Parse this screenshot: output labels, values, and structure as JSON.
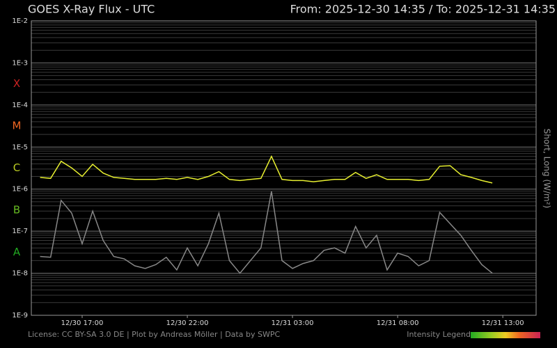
{
  "chart_data": {
    "type": "line",
    "title": "GOES X-Ray Flux - UTC",
    "subtitle": "From: 2025-12-30 14:35  /  To: 2025-12-31 14:35",
    "y_label": "Short, Long (W/m²)",
    "footer": "License: CC BY-SA 3.0 DE | Plot by Andreas Möller | Data by SWPC",
    "legend_label": "Intensity Legend",
    "log_scale": true,
    "grid": true,
    "minor_grid": true,
    "xlim": [
      "2025-12-30T14:35",
      "2025-12-31T14:35"
    ],
    "xticks": [
      {
        "value": "2025-12-30T17:00",
        "label": "12/30 17:00"
      },
      {
        "value": "2025-12-30T22:00",
        "label": "12/30 22:00"
      },
      {
        "value": "2025-12-31T03:00",
        "label": "12/31 03:00"
      },
      {
        "value": "2025-12-31T08:00",
        "label": "12/31 08:00"
      },
      {
        "value": "2025-12-31T13:00",
        "label": "12/31 13:00"
      }
    ],
    "ylim": [
      1e-09,
      0.01
    ],
    "yticks": [
      {
        "value": 1e-09,
        "label": "1E-9"
      },
      {
        "value": 1e-08,
        "label": "1E-8"
      },
      {
        "value": 1e-07,
        "label": "1E-7"
      },
      {
        "value": 1e-06,
        "label": "1E-6"
      },
      {
        "value": 1e-05,
        "label": "1E-5"
      },
      {
        "value": 0.0001,
        "label": "1E-4"
      },
      {
        "value": 0.001,
        "label": "1E-3"
      },
      {
        "value": 0.01,
        "label": "1E-2"
      }
    ],
    "class_labels": [
      {
        "label": "A",
        "color": "#22aa22"
      },
      {
        "label": "B",
        "color": "#66bb22"
      },
      {
        "label": "C",
        "color": "#bbcc22"
      },
      {
        "label": "M",
        "color": "#ee6622"
      },
      {
        "label": "X",
        "color": "#cc2222"
      }
    ],
    "x": [
      "2025-12-30T15:00",
      "2025-12-30T15:30",
      "2025-12-30T16:00",
      "2025-12-30T16:30",
      "2025-12-30T17:00",
      "2025-12-30T17:30",
      "2025-12-30T18:00",
      "2025-12-30T18:30",
      "2025-12-30T19:00",
      "2025-12-30T19:30",
      "2025-12-30T20:00",
      "2025-12-30T20:30",
      "2025-12-30T21:00",
      "2025-12-30T21:30",
      "2025-12-30T22:00",
      "2025-12-30T22:30",
      "2025-12-30T23:00",
      "2025-12-30T23:30",
      "2025-12-31T00:00",
      "2025-12-31T00:30",
      "2025-12-31T01:00",
      "2025-12-31T01:30",
      "2025-12-31T02:00",
      "2025-12-31T02:30",
      "2025-12-31T03:00",
      "2025-12-31T03:30",
      "2025-12-31T04:00",
      "2025-12-31T04:30",
      "2025-12-31T05:00",
      "2025-12-31T05:30",
      "2025-12-31T06:00",
      "2025-12-31T06:30",
      "2025-12-31T07:00",
      "2025-12-31T07:30",
      "2025-12-31T08:00",
      "2025-12-31T08:30",
      "2025-12-31T09:00",
      "2025-12-31T09:30",
      "2025-12-31T10:00",
      "2025-12-31T10:30",
      "2025-12-31T11:00",
      "2025-12-31T11:30",
      "2025-12-31T12:00",
      "2025-12-31T12:30"
    ],
    "series": [
      {
        "color": "#e8f030",
        "values": [
          1.9e-06,
          1.8e-06,
          4.6e-06,
          3.2e-06,
          2e-06,
          3.9e-06,
          2.4e-06,
          1.9e-06,
          1.8e-06,
          1.7e-06,
          1.7e-06,
          1.7e-06,
          1.8e-06,
          1.7e-06,
          1.9e-06,
          1.7e-06,
          2e-06,
          2.6e-06,
          1.7e-06,
          1.6e-06,
          1.7e-06,
          1.8e-06,
          6e-06,
          1.7e-06,
          1.6e-06,
          1.6e-06,
          1.5e-06,
          1.6e-06,
          1.7e-06,
          1.7e-06,
          2.5e-06,
          1.8e-06,
          2.2e-06,
          1.7e-06,
          1.7e-06,
          1.7e-06,
          1.6e-06,
          1.7e-06,
          3.5e-06,
          3.6e-06,
          2.2e-06,
          1.9e-06,
          1.6e-06,
          1.4e-06
        ]
      },
      {
        "color": "#888888",
        "values": [
          2.5e-08,
          2.4e-08,
          5.4e-07,
          2.7e-07,
          5e-08,
          3e-07,
          6e-08,
          2.5e-08,
          2.2e-08,
          1.5e-08,
          1.3e-08,
          1.6e-08,
          2.4e-08,
          1.2e-08,
          4e-08,
          1.5e-08,
          5e-08,
          2.7e-07,
          2e-08,
          1e-08,
          2e-08,
          4e-08,
          8.8e-07,
          2e-08,
          1.3e-08,
          1.7e-08,
          2e-08,
          3.5e-08,
          4e-08,
          3e-08,
          1.3e-07,
          4e-08,
          8e-08,
          1.2e-08,
          3e-08,
          2.5e-08,
          1.5e-08,
          2e-08,
          2.8e-07,
          1.5e-07,
          8e-08,
          3.5e-08,
          1.6e-08,
          1e-08
        ]
      }
    ]
  }
}
